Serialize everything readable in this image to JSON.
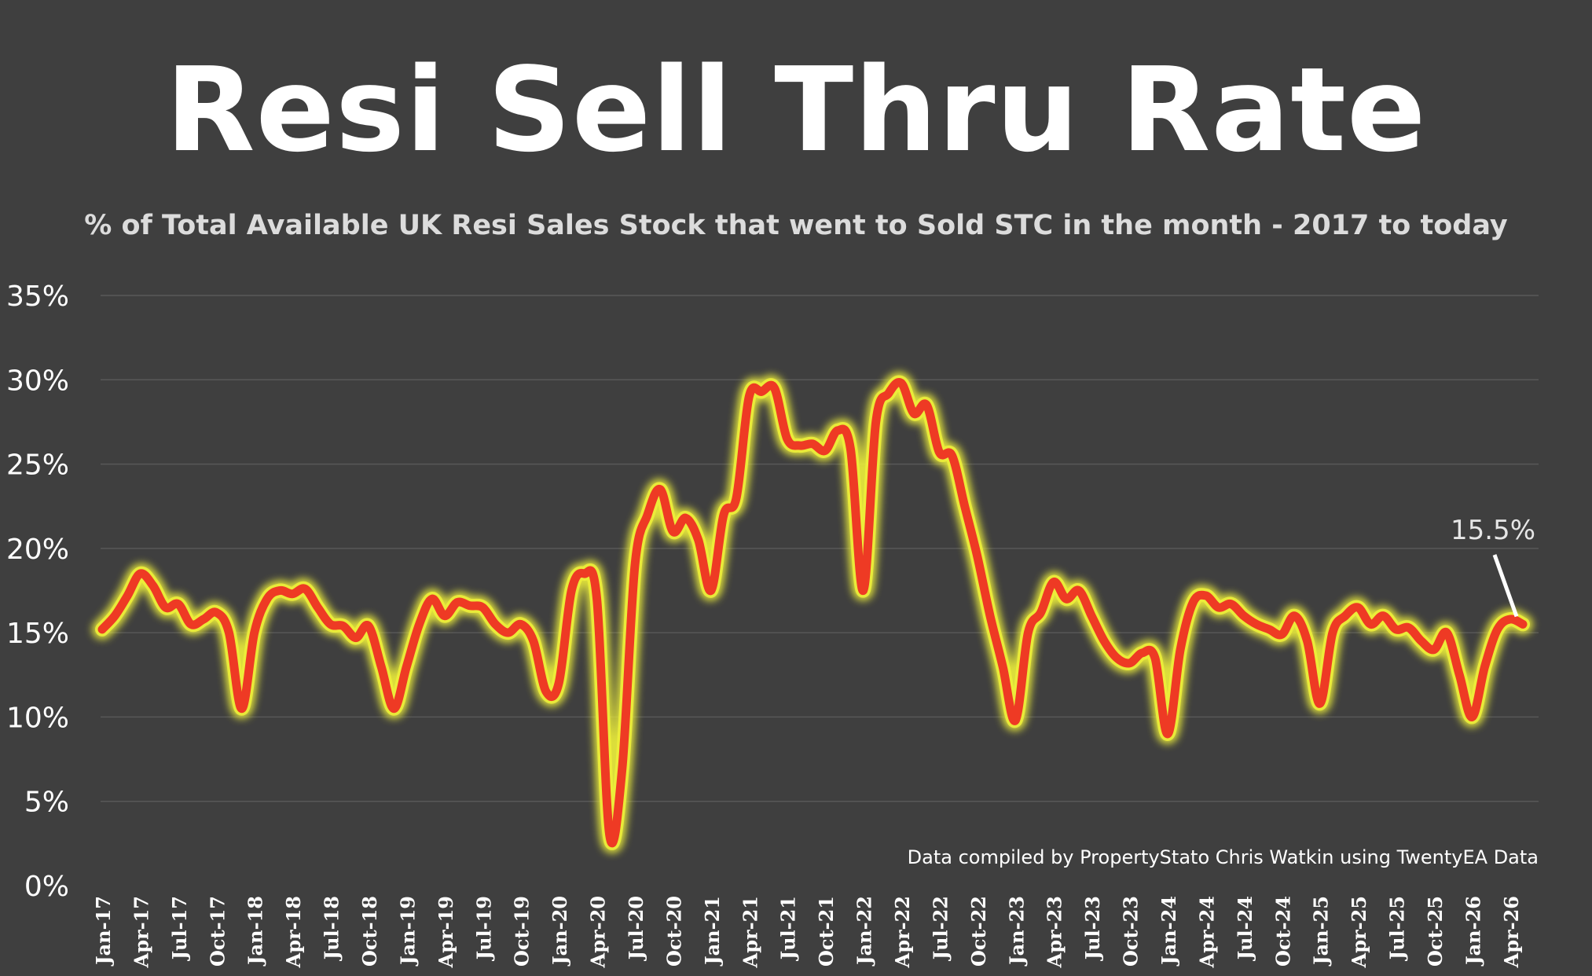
{
  "title": "Resi Sell Thru Rate",
  "subtitle": "% of Total Available UK Resi Sales Stock that went to Sold STC in the month - 2017 to today",
  "source_note": "Data compiled by PropertyStato Chris Watkin using TwentyEA Data",
  "colors": {
    "background": "#3f3f3f",
    "line": "#ee3a24",
    "glow": "#eef03a",
    "grid": "#585858",
    "text": "#ffffff"
  },
  "chart_data": {
    "type": "line",
    "title": "Resi Sell Thru Rate",
    "subtitle": "% of Total Available UK Resi Sales Stock that went to Sold STC in the month - 2017 to today",
    "xlabel": "",
    "ylabel": "",
    "ylim": [
      0,
      35
    ],
    "yticks": [
      "0%",
      "5%",
      "10%",
      "15%",
      "20%",
      "25%",
      "30%",
      "35%"
    ],
    "grid": true,
    "legend": "none",
    "x_tick_labels": [
      "Jan-17",
      "Apr-17",
      "Jul-17",
      "Oct-17",
      "Jan-18",
      "Apr-18",
      "Jul-18",
      "Oct-18",
      "Jan-19",
      "Apr-19",
      "Jul-19",
      "Oct-19",
      "Jan-20",
      "Apr-20",
      "Jul-20",
      "Oct-20",
      "Jan-21",
      "Apr-21",
      "Jul-21",
      "Oct-21",
      "Jan-22",
      "Apr-22",
      "Jul-22",
      "Oct-22",
      "Jan-23",
      "Apr-23",
      "Jul-23",
      "Oct-23",
      "Jan-24",
      "Apr-24",
      "Jul-24",
      "Oct-24",
      "Jan-25",
      "Apr-25",
      "Jul-25",
      "Oct-25",
      "Jan-26",
      "Apr-26"
    ],
    "series": [
      {
        "values": [
          15.2,
          16.0,
          17.2,
          18.5,
          17.8,
          16.5,
          16.7,
          15.5,
          15.8,
          16.2,
          15.0,
          10.5,
          15.0,
          17.0,
          17.5,
          17.3,
          17.6,
          16.5,
          15.5,
          15.4,
          14.7,
          15.4,
          13.0,
          10.5,
          13.0,
          15.5,
          17.0,
          16.0,
          16.8,
          16.6,
          16.5,
          15.5,
          15.0,
          15.5,
          14.5,
          11.5,
          12.0,
          17.5,
          18.5,
          17.0,
          3.0,
          7.0,
          19.0,
          22.0,
          23.5,
          21.0,
          21.8,
          20.5,
          17.5,
          22.0,
          23.0,
          29.0,
          29.3,
          29.5,
          26.5,
          26.1,
          26.2,
          25.8,
          27.0,
          25.9,
          17.5,
          27.5,
          29.2,
          29.8,
          28.0,
          28.5,
          25.7,
          25.5,
          22.5,
          19.5,
          16.0,
          13.0,
          9.8,
          15.0,
          16.2,
          18.0,
          17.0,
          17.5,
          16.0,
          14.5,
          13.5,
          13.2,
          13.8,
          13.5,
          9.0,
          14.0,
          16.8,
          17.2,
          16.5,
          16.7,
          16.0,
          15.5,
          15.2,
          14.9,
          16.0,
          14.5,
          10.8,
          15.0,
          16.0,
          16.5,
          15.5,
          16.0,
          15.2,
          15.3,
          14.5,
          14.0,
          15.0,
          12.5,
          10.0,
          13.0,
          15.2,
          15.8,
          15.5
        ]
      }
    ],
    "annotations": [
      {
        "text": "15.5%",
        "target_value": 15.5,
        "target": "last-point"
      }
    ]
  }
}
